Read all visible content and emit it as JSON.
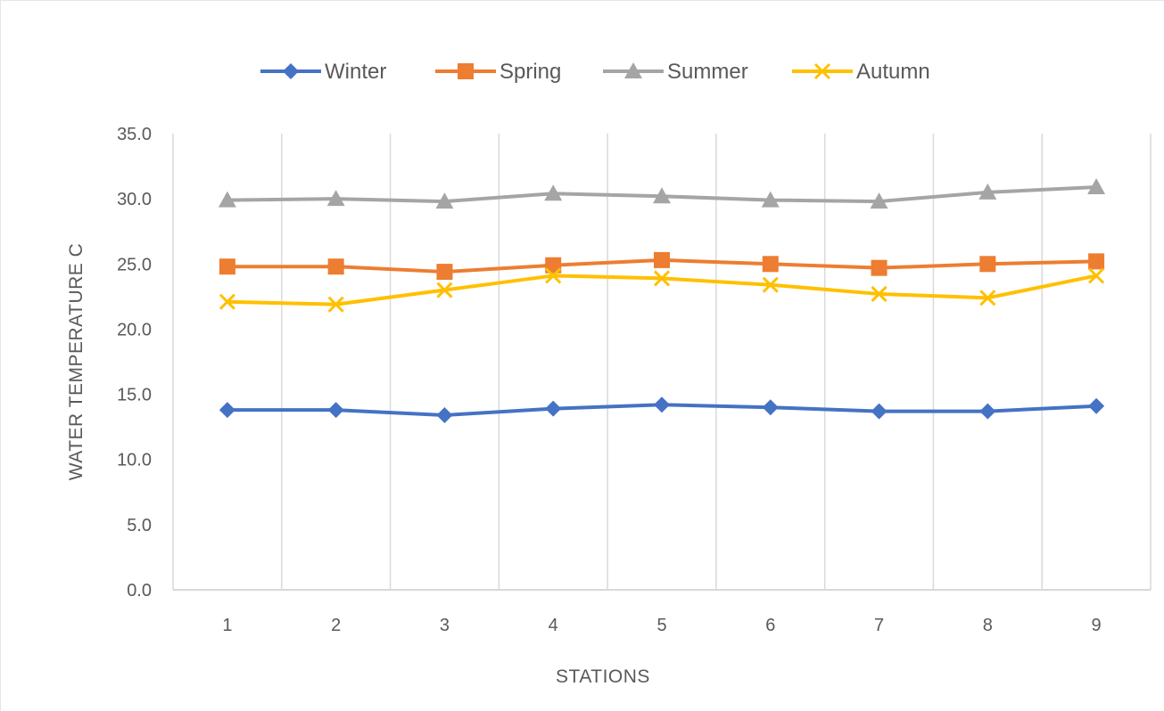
{
  "chart_data": {
    "type": "line",
    "title": "",
    "xlabel": "STATIONS",
    "ylabel": "WATER TEMPERATURE C",
    "categories": [
      "1",
      "2",
      "3",
      "4",
      "5",
      "6",
      "7",
      "8",
      "9"
    ],
    "ylim": [
      0,
      35
    ],
    "yticks": [
      "0.0",
      "5.0",
      "10.0",
      "15.0",
      "20.0",
      "25.0",
      "30.0",
      "35.0"
    ],
    "grid": "vertical",
    "legend_position": "top",
    "series": [
      {
        "name": "Winter",
        "color": "#4472c4",
        "marker": "diamond",
        "values": [
          13.8,
          13.8,
          13.4,
          13.9,
          14.2,
          14.0,
          13.7,
          13.7,
          14.1
        ]
      },
      {
        "name": "Spring",
        "color": "#ed7d31",
        "marker": "square",
        "values": [
          24.8,
          24.8,
          24.4,
          24.9,
          25.3,
          25.0,
          24.7,
          25.0,
          25.2
        ]
      },
      {
        "name": "Summer",
        "color": "#a5a5a5",
        "marker": "triangle",
        "values": [
          29.9,
          30.0,
          29.8,
          30.4,
          30.2,
          29.9,
          29.8,
          30.5,
          30.9
        ]
      },
      {
        "name": "Autumn",
        "color": "#ffc000",
        "marker": "x",
        "values": [
          22.1,
          21.9,
          23.0,
          24.1,
          23.9,
          23.4,
          22.7,
          22.4,
          24.1
        ]
      }
    ]
  }
}
